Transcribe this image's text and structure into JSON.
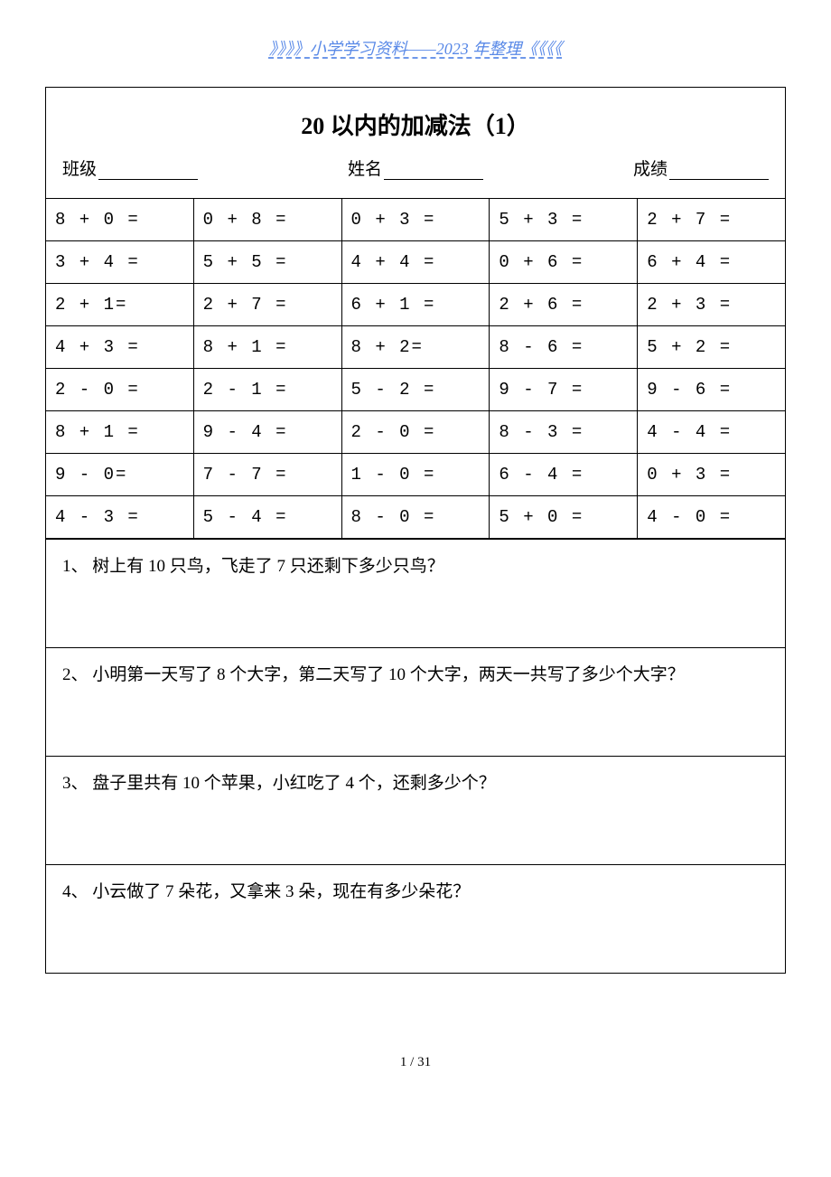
{
  "header_banner": "》》》》小学学习资料——2023 年整理《《《《",
  "title": "20 以内的加减法（1）",
  "info": {
    "class_label": "班级",
    "name_label": "姓名",
    "score_label": "成绩"
  },
  "calc_rows": [
    [
      "8 + 0 =",
      "0 + 8 =",
      "0 + 3 =",
      "5 + 3 =",
      "2 + 7 ="
    ],
    [
      "3 + 4 =",
      "5 + 5 =",
      "4 + 4 =",
      "0 + 6 =",
      "6 + 4 ="
    ],
    [
      "2 + 1=",
      "2 + 7 =",
      "6 + 1 =",
      "2 + 6 =",
      "2 + 3 ="
    ],
    [
      "4 + 3 =",
      "8 + 1 =",
      "8 + 2=",
      "8 - 6 =",
      "5 + 2 ="
    ],
    [
      "2 - 0 =",
      "2 - 1 =",
      "5 - 2 =",
      "9 - 7 =",
      "9 - 6 ="
    ],
    [
      "8 + 1 =",
      "9 - 4 =",
      "2 - 0 =",
      "8 - 3 =",
      "4 - 4 ="
    ],
    [
      "9 - 0=",
      "7 - 7 =",
      "1 - 0 =",
      "6 - 4 =",
      "0 + 3 ="
    ],
    [
      "4 - 3 =",
      "5 - 4 =",
      "8 - 0 =",
      "5 + 0 =",
      "4 - 0 ="
    ]
  ],
  "word_problems": [
    "1、 树上有 10 只鸟，飞走了 7 只还剩下多少只鸟？",
    "2、 小明第一天写了 8 个大字，第二天写了 10 个大字，两天一共写了多少个大字？",
    "3、 盘子里共有 10 个苹果，小红吃了 4 个，还剩多少个？",
    "4、 小云做了 7 朵花，又拿来 3 朵，现在有多少朵花？"
  ],
  "page_number": "1 / 31",
  "colors": {
    "banner_text": "#5989e7",
    "border": "#000000",
    "background": "#ffffff"
  }
}
